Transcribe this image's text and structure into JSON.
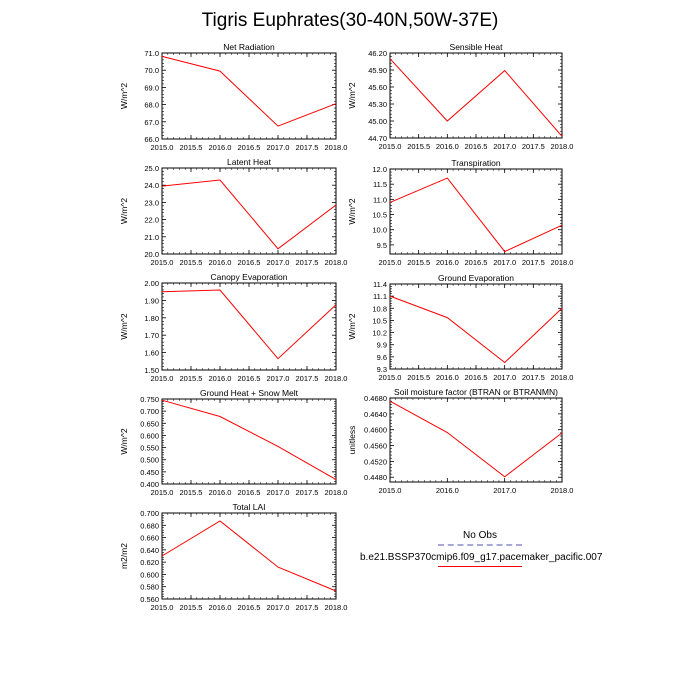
{
  "title": "Tigris Euphrates(30-40N,50W-37E)",
  "legend": {
    "obs_label": "No Obs",
    "model_label": "b.e21.BSSP370cmip6.f09_g17.pacemaker_pacific.007",
    "obs_color": "#a8a8d8",
    "model_color": "#ff0000"
  },
  "chart_data": [
    {
      "type": "line",
      "title": "Net Radiation",
      "ylabel": "W/m^2",
      "x": [
        2015,
        2016,
        2017,
        2018
      ],
      "values": [
        70.8,
        69.95,
        66.75,
        68.05
      ],
      "xlim": [
        2015,
        2018
      ],
      "ylim": [
        66.0,
        71.0
      ],
      "xticks": [
        "2015.0",
        "2015.5",
        "2016.0",
        "2016.5",
        "2017.0",
        "2017.5",
        "2018.0"
      ],
      "yticks": [
        "66.0",
        "67.0",
        "68.0",
        "69.0",
        "70.0",
        "71.0"
      ],
      "series_color": "#ff0000"
    },
    {
      "type": "line",
      "title": "Sensible Heat",
      "ylabel": "W/m^2",
      "x": [
        2015,
        2016,
        2017,
        2018
      ],
      "values": [
        46.1,
        45.0,
        45.89,
        44.73
      ],
      "xlim": [
        2015,
        2018
      ],
      "ylim": [
        44.7,
        46.2
      ],
      "xticks": [
        "2015.0",
        "2015.5",
        "2016.0",
        "2016.5",
        "2017.0",
        "2017.5",
        "2018.0"
      ],
      "yticks": [
        "44.70",
        "45.00",
        "45.30",
        "45.60",
        "45.90",
        "46.20"
      ],
      "series_color": "#ff0000"
    },
    {
      "type": "line",
      "title": "Latent Heat",
      "ylabel": "W/m^2",
      "x": [
        2015,
        2016,
        2017,
        2018
      ],
      "values": [
        23.95,
        24.3,
        20.3,
        22.85
      ],
      "xlim": [
        2015,
        2018
      ],
      "ylim": [
        20.0,
        25.0
      ],
      "xticks": [
        "2015.0",
        "2015.5",
        "2016.0",
        "2016.5",
        "2017.0",
        "2017.5",
        "2018.0"
      ],
      "yticks": [
        "20.0",
        "21.0",
        "22.0",
        "23.0",
        "24.0",
        "25.0"
      ],
      "series_color": "#ff0000"
    },
    {
      "type": "line",
      "title": "Transpiration",
      "ylabel": "W/m^2",
      "x": [
        2015,
        2016,
        2017,
        2018
      ],
      "values": [
        10.9,
        11.7,
        9.28,
        10.15
      ],
      "xlim": [
        2015,
        2018
      ],
      "ylim": [
        9.2,
        12.0
      ],
      "xticks": [
        "2015.0",
        "2015.5",
        "2016.0",
        "2016.5",
        "2017.0",
        "2017.5",
        "2018.0"
      ],
      "yticks": [
        "9.5",
        "10.0",
        "10.5",
        "11.0",
        "11.5",
        "12.0"
      ],
      "series_color": "#ff0000"
    },
    {
      "type": "line",
      "title": "Canopy Evaporation",
      "ylabel": "W/m^2",
      "x": [
        2015,
        2016,
        2017,
        2018
      ],
      "values": [
        1.95,
        1.96,
        1.565,
        1.875
      ],
      "xlim": [
        2015,
        2018
      ],
      "ylim": [
        1.5,
        2.0
      ],
      "xticks": [
        "2015.0",
        "2015.5",
        "2016.0",
        "2016.5",
        "2017.0",
        "2017.5",
        "2018.0"
      ],
      "yticks": [
        "1.50",
        "1.60",
        "1.70",
        "1.80",
        "1.90",
        "2.00"
      ],
      "series_color": "#ff0000"
    },
    {
      "type": "line",
      "title": "Ground Evaporation",
      "ylabel": "W/m^2",
      "x": [
        2015,
        2016,
        2017,
        2018
      ],
      "values": [
        11.1,
        10.57,
        9.46,
        10.8
      ],
      "xlim": [
        2015,
        2018
      ],
      "ylim": [
        9.3,
        11.4
      ],
      "xticks": [
        "2015.0",
        "2015.5",
        "2016.0",
        "2016.5",
        "2017.0",
        "2017.5",
        "2018.0"
      ],
      "yticks": [
        "9.3",
        "9.6",
        "9.9",
        "10.2",
        "10.5",
        "10.8",
        "11.1",
        "11.4"
      ],
      "series_color": "#ff0000"
    },
    {
      "type": "line",
      "title": "Ground Heat + Snow Melt",
      "ylabel": "W/m^2",
      "x": [
        2015,
        2016,
        2017,
        2018
      ],
      "values": [
        0.745,
        0.678,
        0.555,
        0.418
      ],
      "xlim": [
        2015,
        2018
      ],
      "ylim": [
        0.4,
        0.75
      ],
      "xticks": [
        "2015.0",
        "2015.5",
        "2016.0",
        "2016.5",
        "2017.0",
        "2017.5",
        "2018.0"
      ],
      "yticks": [
        "0.400",
        "0.450",
        "0.500",
        "0.550",
        "0.600",
        "0.650",
        "0.700",
        "0.750"
      ],
      "series_color": "#ff0000"
    },
    {
      "type": "line",
      "title": "Soil moisture factor (BTRAN or BTRANMN)",
      "ylabel": "unitless",
      "x": [
        2015,
        2016,
        2017,
        2018
      ],
      "values": [
        0.4672,
        0.4593,
        0.4481,
        0.4592
      ],
      "xlim": [
        2015,
        2018
      ],
      "ylim": [
        0.4468,
        0.468
      ],
      "xticks": [
        "2015.0",
        "2016.0",
        "2017.0",
        "2018.0"
      ],
      "yticks": [
        "0.4480",
        "0.4520",
        "0.4560",
        "0.4600",
        "0.4640",
        "0.4680"
      ],
      "series_color": "#ff0000"
    },
    {
      "type": "line",
      "title": "Total LAI",
      "ylabel": "m2/m2",
      "x": [
        2015,
        2016,
        2017,
        2018
      ],
      "values": [
        0.63,
        0.687,
        0.612,
        0.573
      ],
      "xlim": [
        2015,
        2018
      ],
      "ylim": [
        0.56,
        0.7
      ],
      "xticks": [
        "2015.0",
        "2015.5",
        "2016.0",
        "2016.5",
        "2017.0",
        "2017.5",
        "2018.0"
      ],
      "yticks": [
        "0.560",
        "0.580",
        "0.600",
        "0.620",
        "0.640",
        "0.660",
        "0.680",
        "0.700"
      ],
      "series_color": "#ff0000"
    }
  ]
}
